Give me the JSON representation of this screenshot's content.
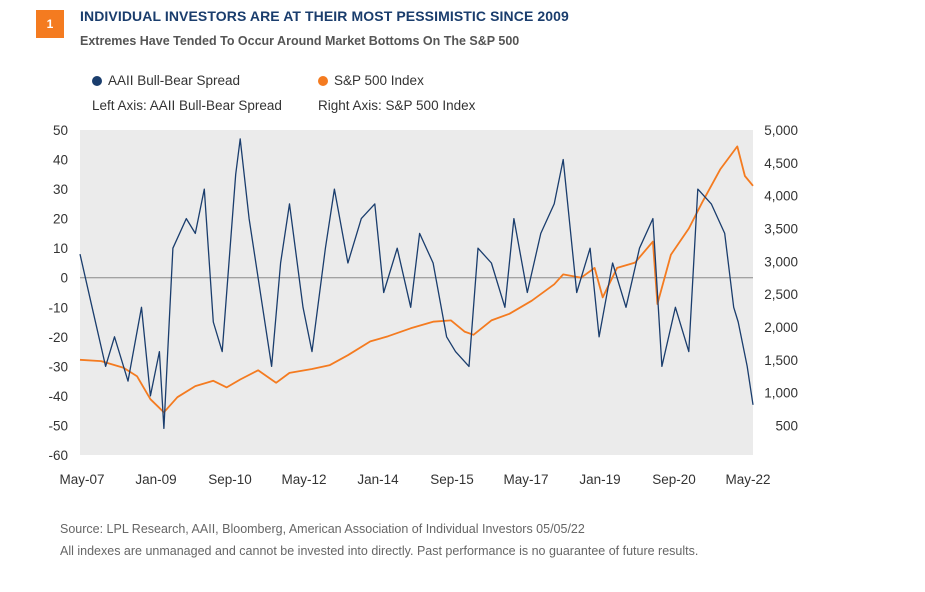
{
  "badge": "1",
  "title": "INDIVIDUAL INVESTORS ARE AT THEIR MOST PESSIMISTIC SINCE 2009",
  "subtitle": "Extremes Have Tended To Occur Around Market Bottoms On The S&P 500",
  "legend": {
    "spread_label": "AAII Bull-Bear Spread",
    "spx_label": "S&P 500 Index",
    "left_axis_note": "Left Axis: AAII Bull-Bear Spread",
    "right_axis_note": "Right Axis: S&P 500 Index"
  },
  "footer": {
    "source": "Source: LPL Research, AAII, Bloomberg, American Association of Individual Investors  05/05/22",
    "disclaimer": "All indexes are unmanaged and cannot be invested into directly. Past performance is no guarantee of future results."
  },
  "colors": {
    "spread": "#1a3d6d",
    "spx": "#f47b20",
    "plot_bg": "#ebebeb",
    "zero_line": "#8a8a8a"
  },
  "chart_data": {
    "type": "line",
    "x_tick_labels": [
      "May-07",
      "Jan-09",
      "Sep-10",
      "May-12",
      "Jan-14",
      "Sep-15",
      "May-17",
      "Jan-19",
      "Sep-20",
      "May-22"
    ],
    "x_range": [
      "2007-05",
      "2022-05"
    ],
    "left_axis": {
      "label": "AAII Bull-Bear Spread",
      "ylim": [
        -60,
        50
      ],
      "ticks": [
        "50",
        "40",
        "30",
        "20",
        "10",
        "0",
        "-10",
        "-20",
        "-30",
        "-40",
        "-50",
        "-60"
      ]
    },
    "right_axis": {
      "label": "S&P 500 Index",
      "ylim": [
        0,
        5000
      ],
      "ticks": [
        "5,000",
        "4,500",
        "4,000",
        "3,500",
        "3,000",
        "2,500",
        "2,000",
        "1,500",
        "1,000",
        "500"
      ]
    },
    "series": [
      {
        "name": "AAII Bull-Bear Spread",
        "axis": "left",
        "x": [
          2007.33,
          2007.6,
          2007.9,
          2008.1,
          2008.4,
          2008.7,
          2008.9,
          2009.1,
          2009.2,
          2009.4,
          2009.7,
          2009.9,
          2010.1,
          2010.3,
          2010.5,
          2010.8,
          2010.9,
          2011.1,
          2011.4,
          2011.6,
          2011.8,
          2012.0,
          2012.3,
          2012.5,
          2012.8,
          2013.0,
          2013.3,
          2013.6,
          2013.9,
          2014.1,
          2014.4,
          2014.7,
          2014.9,
          2015.2,
          2015.5,
          2015.7,
          2016.0,
          2016.2,
          2016.5,
          2016.8,
          2017.0,
          2017.3,
          2017.6,
          2017.9,
          2018.1,
          2018.4,
          2018.7,
          2018.9,
          2019.2,
          2019.5,
          2019.8,
          2020.1,
          2020.3,
          2020.6,
          2020.9,
          2021.1,
          2021.4,
          2021.7,
          2021.9,
          2022.0,
          2022.2,
          2022.33
        ],
        "values": [
          8,
          -10,
          -30,
          -20,
          -35,
          -10,
          -40,
          -25,
          -51,
          10,
          20,
          15,
          30,
          -15,
          -25,
          35,
          47,
          20,
          -10,
          -30,
          5,
          25,
          -10,
          -25,
          10,
          30,
          5,
          20,
          25,
          -5,
          10,
          -10,
          15,
          5,
          -20,
          -25,
          -30,
          10,
          5,
          -10,
          20,
          -5,
          15,
          25,
          40,
          -5,
          10,
          -20,
          5,
          -10,
          10,
          20,
          -30,
          -10,
          -25,
          30,
          25,
          15,
          -10,
          -15,
          -30,
          -43
        ]
      },
      {
        "name": "S&P 500 Index",
        "axis": "right",
        "x": [
          2007.33,
          2007.8,
          2008.3,
          2008.6,
          2008.9,
          2009.2,
          2009.5,
          2009.9,
          2010.3,
          2010.6,
          2010.9,
          2011.3,
          2011.7,
          2012.0,
          2012.5,
          2012.9,
          2013.3,
          2013.8,
          2014.2,
          2014.7,
          2015.2,
          2015.6,
          2015.9,
          2016.1,
          2016.5,
          2016.9,
          2017.4,
          2017.9,
          2018.1,
          2018.5,
          2018.8,
          2018.98,
          2019.3,
          2019.7,
          2020.1,
          2020.2,
          2020.5,
          2020.9,
          2021.2,
          2021.6,
          2021.98,
          2022.15,
          2022.33
        ],
        "values": [
          1500,
          1480,
          1380,
          1250,
          900,
          700,
          930,
          1100,
          1180,
          1080,
          1200,
          1340,
          1150,
          1300,
          1360,
          1420,
          1570,
          1780,
          1860,
          1980,
          2080,
          2100,
          1930,
          1880,
          2100,
          2200,
          2400,
          2650,
          2800,
          2750,
          2900,
          2450,
          2900,
          2980,
          3300,
          2350,
          3100,
          3500,
          3900,
          4400,
          4750,
          4300,
          4150
        ]
      }
    ]
  }
}
